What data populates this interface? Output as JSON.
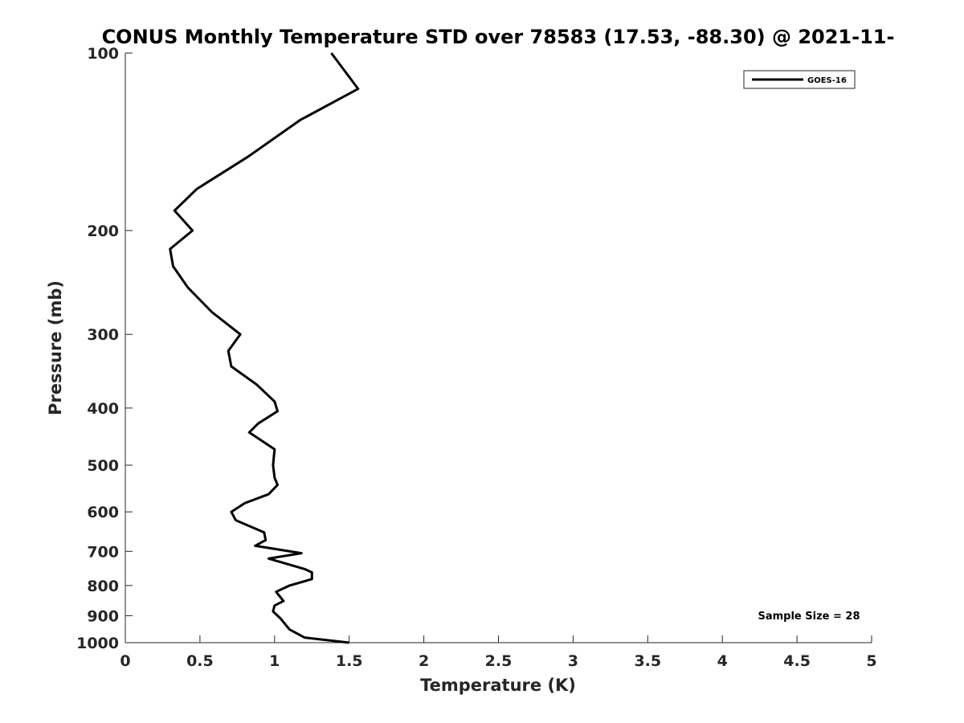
{
  "chart_data": {
    "type": "line",
    "title": "CONUS Monthly Temperature STD over 78583 (17.53, -88.30) @ 2021-11-",
    "xlabel": "Temperature (K)",
    "ylabel": "Pressure (mb)",
    "xlim": [
      0,
      5
    ],
    "ylim": [
      100,
      1000
    ],
    "yscale": "log",
    "y_reversed": true,
    "grid": false,
    "legend_position": "top-right",
    "x_ticks": [
      "0",
      "0.5",
      "1",
      "1.5",
      "2",
      "2.5",
      "3",
      "3.5",
      "4",
      "4.5",
      "5"
    ],
    "y_ticks": [
      "100",
      "200",
      "300",
      "400",
      "500",
      "600",
      "700",
      "800",
      "900",
      "1000"
    ],
    "series": [
      {
        "name": "GOES-16",
        "color": "#000000",
        "x": [
          1.38,
          1.56,
          1.17,
          0.82,
          0.48,
          0.33,
          0.45,
          0.3,
          0.32,
          0.42,
          0.58,
          0.77,
          0.69,
          0.71,
          0.88,
          1.0,
          1.02,
          0.89,
          0.83,
          1.0,
          0.99,
          1.0,
          1.02,
          0.96,
          0.8,
          0.71,
          0.74,
          0.93,
          0.94,
          0.87,
          1.18,
          0.96,
          1.2,
          1.25,
          1.25,
          1.1,
          1.01,
          1.06,
          1.0,
          0.99,
          1.04,
          1.1,
          1.2,
          1.5
        ],
        "y": [
          100,
          115,
          130,
          150,
          170,
          185,
          200,
          215,
          230,
          250,
          275,
          300,
          320,
          340,
          365,
          390,
          405,
          425,
          440,
          470,
          500,
          525,
          540,
          560,
          580,
          600,
          620,
          650,
          670,
          685,
          705,
          720,
          750,
          760,
          780,
          800,
          820,
          850,
          865,
          885,
          910,
          950,
          980,
          1000
        ]
      }
    ],
    "annotations": [
      "Sample Size = 28"
    ]
  }
}
